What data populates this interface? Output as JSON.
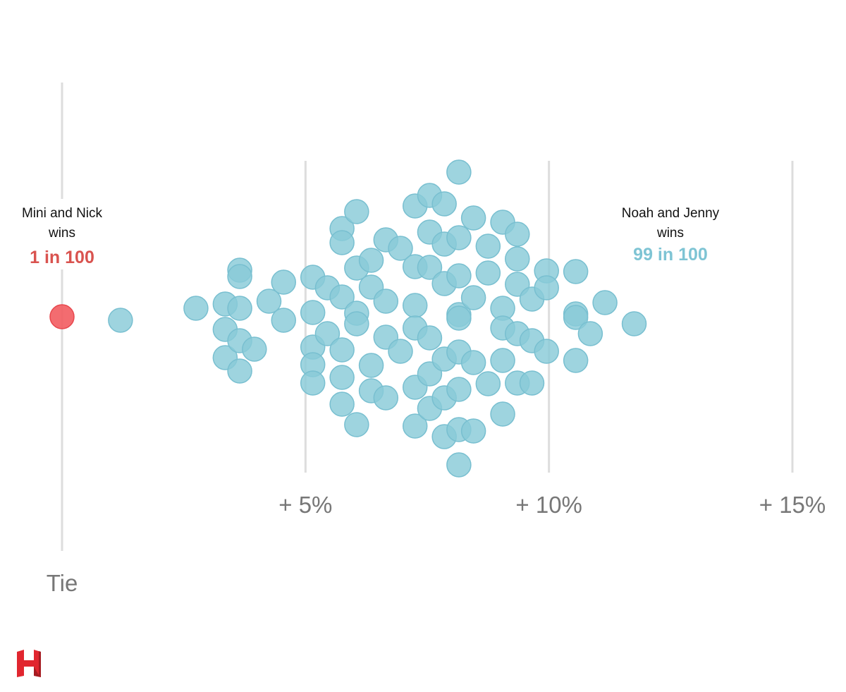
{
  "chart_data": {
    "type": "scatter",
    "subtype": "beeswarm",
    "x_axis": {
      "range": [
        0,
        15
      ],
      "ticks": [
        {
          "value": 0,
          "label": "Tie"
        },
        {
          "value": 5,
          "label": "+ 5%"
        },
        {
          "value": 10,
          "label": "+ 10%"
        },
        {
          "value": 15,
          "label": "+ 15%"
        }
      ]
    },
    "annotations": {
      "left": {
        "line1": "Mini and Nick",
        "line2": "wins",
        "odds": "1 in 100",
        "color": "#d9534f"
      },
      "right": {
        "line1": "Noah and Jenny",
        "line2": "wins",
        "odds": "99 in 100",
        "color": "#7ec4d4"
      }
    },
    "colors": {
      "left_dot": "#f25c61",
      "right_dot": "#89cad8",
      "gridline": "#dddddd",
      "tick_text": "#777777"
    },
    "logo": "h-logo",
    "outcomes": [
      {
        "side": "left",
        "x": 0.0,
        "y": 0.0
      },
      {
        "side": "right",
        "x": 1.2,
        "y": -0.05
      },
      {
        "side": "right",
        "x": 2.75,
        "y": 0.12
      },
      {
        "side": "right",
        "x": 3.35,
        "y": 0.18
      },
      {
        "side": "right",
        "x": 3.35,
        "y": -0.18
      },
      {
        "side": "right",
        "x": 3.35,
        "y": -0.58
      },
      {
        "side": "right",
        "x": 3.65,
        "y": 0.66
      },
      {
        "side": "right",
        "x": 3.65,
        "y": 0.57
      },
      {
        "side": "right",
        "x": 3.65,
        "y": 0.12
      },
      {
        "side": "right",
        "x": 3.65,
        "y": -0.34
      },
      {
        "side": "right",
        "x": 3.65,
        "y": -0.77
      },
      {
        "side": "right",
        "x": 3.95,
        "y": -0.46
      },
      {
        "side": "right",
        "x": 4.25,
        "y": 0.22
      },
      {
        "side": "right",
        "x": 4.55,
        "y": 0.49
      },
      {
        "side": "right",
        "x": 4.55,
        "y": -0.05
      },
      {
        "side": "right",
        "x": 5.15,
        "y": 0.56
      },
      {
        "side": "right",
        "x": 5.15,
        "y": 0.06
      },
      {
        "side": "right",
        "x": 5.15,
        "y": -0.43
      },
      {
        "side": "right",
        "x": 5.15,
        "y": -0.68
      },
      {
        "side": "right",
        "x": 5.15,
        "y": -0.94
      },
      {
        "side": "right",
        "x": 5.45,
        "y": 0.41
      },
      {
        "side": "right",
        "x": 5.45,
        "y": -0.24
      },
      {
        "side": "right",
        "x": 5.75,
        "y": 1.25
      },
      {
        "side": "right",
        "x": 5.75,
        "y": 1.05
      },
      {
        "side": "right",
        "x": 5.75,
        "y": 0.28
      },
      {
        "side": "right",
        "x": 5.75,
        "y": -0.47
      },
      {
        "side": "right",
        "x": 5.75,
        "y": -0.86
      },
      {
        "side": "right",
        "x": 5.75,
        "y": -1.24
      },
      {
        "side": "right",
        "x": 6.05,
        "y": 1.49
      },
      {
        "side": "right",
        "x": 6.05,
        "y": 0.69
      },
      {
        "side": "right",
        "x": 6.05,
        "y": 0.05
      },
      {
        "side": "right",
        "x": 6.05,
        "y": -0.1
      },
      {
        "side": "right",
        "x": 6.05,
        "y": -1.53
      },
      {
        "side": "right",
        "x": 6.35,
        "y": 0.8
      },
      {
        "side": "right",
        "x": 6.35,
        "y": 0.42
      },
      {
        "side": "right",
        "x": 6.35,
        "y": -0.69
      },
      {
        "side": "right",
        "x": 6.35,
        "y": -1.05
      },
      {
        "side": "right",
        "x": 6.65,
        "y": 1.09
      },
      {
        "side": "right",
        "x": 6.65,
        "y": 0.22
      },
      {
        "side": "right",
        "x": 6.65,
        "y": -0.29
      },
      {
        "side": "right",
        "x": 6.65,
        "y": -1.15
      },
      {
        "side": "right",
        "x": 6.95,
        "y": 0.97
      },
      {
        "side": "right",
        "x": 6.95,
        "y": -0.49
      },
      {
        "side": "right",
        "x": 7.25,
        "y": 1.57
      },
      {
        "side": "right",
        "x": 7.25,
        "y": 0.71
      },
      {
        "side": "right",
        "x": 7.25,
        "y": 0.16
      },
      {
        "side": "right",
        "x": 7.25,
        "y": -0.16
      },
      {
        "side": "right",
        "x": 7.25,
        "y": -1.0
      },
      {
        "side": "right",
        "x": 7.25,
        "y": -1.55
      },
      {
        "side": "right",
        "x": 7.55,
        "y": 1.72
      },
      {
        "side": "right",
        "x": 7.55,
        "y": 1.2
      },
      {
        "side": "right",
        "x": 7.55,
        "y": 0.7
      },
      {
        "side": "right",
        "x": 7.55,
        "y": -0.3
      },
      {
        "side": "right",
        "x": 7.55,
        "y": -0.81
      },
      {
        "side": "right",
        "x": 7.55,
        "y": -1.3
      },
      {
        "side": "right",
        "x": 7.85,
        "y": 1.6
      },
      {
        "side": "right",
        "x": 7.85,
        "y": 1.03
      },
      {
        "side": "right",
        "x": 7.85,
        "y": 0.47
      },
      {
        "side": "right",
        "x": 7.85,
        "y": -0.6
      },
      {
        "side": "right",
        "x": 7.85,
        "y": -1.15
      },
      {
        "side": "right",
        "x": 7.85,
        "y": -1.7
      },
      {
        "side": "right",
        "x": 8.15,
        "y": 2.05
      },
      {
        "side": "right",
        "x": 8.15,
        "y": 1.12
      },
      {
        "side": "right",
        "x": 8.15,
        "y": 0.58
      },
      {
        "side": "right",
        "x": 8.15,
        "y": 0.03
      },
      {
        "side": "right",
        "x": 8.15,
        "y": -0.02
      },
      {
        "side": "right",
        "x": 8.15,
        "y": -0.5
      },
      {
        "side": "right",
        "x": 8.15,
        "y": -1.03
      },
      {
        "side": "right",
        "x": 8.15,
        "y": -1.6
      },
      {
        "side": "right",
        "x": 8.15,
        "y": -2.1
      },
      {
        "side": "right",
        "x": 8.45,
        "y": 1.4
      },
      {
        "side": "right",
        "x": 8.45,
        "y": 0.27
      },
      {
        "side": "right",
        "x": 8.45,
        "y": -0.65
      },
      {
        "side": "right",
        "x": 8.45,
        "y": -1.62
      },
      {
        "side": "right",
        "x": 8.75,
        "y": 1.0
      },
      {
        "side": "right",
        "x": 8.75,
        "y": 0.62
      },
      {
        "side": "right",
        "x": 8.75,
        "y": -0.95
      },
      {
        "side": "right",
        "x": 9.05,
        "y": 1.34
      },
      {
        "side": "right",
        "x": 9.05,
        "y": 0.12
      },
      {
        "side": "right",
        "x": 9.05,
        "y": -0.16
      },
      {
        "side": "right",
        "x": 9.05,
        "y": -0.62
      },
      {
        "side": "right",
        "x": 9.05,
        "y": -1.38
      },
      {
        "side": "right",
        "x": 9.35,
        "y": 1.17
      },
      {
        "side": "right",
        "x": 9.35,
        "y": 0.82
      },
      {
        "side": "right",
        "x": 9.35,
        "y": 0.46
      },
      {
        "side": "right",
        "x": 9.35,
        "y": -0.24
      },
      {
        "side": "right",
        "x": 9.35,
        "y": -0.94
      },
      {
        "side": "right",
        "x": 9.65,
        "y": 0.25
      },
      {
        "side": "right",
        "x": 9.65,
        "y": -0.34
      },
      {
        "side": "right",
        "x": 9.65,
        "y": -0.94
      },
      {
        "side": "right",
        "x": 9.95,
        "y": 0.65
      },
      {
        "side": "right",
        "x": 9.95,
        "y": 0.41
      },
      {
        "side": "right",
        "x": 9.95,
        "y": -0.49
      },
      {
        "side": "right",
        "x": 10.55,
        "y": 0.64
      },
      {
        "side": "right",
        "x": 10.55,
        "y": 0.04
      },
      {
        "side": "right",
        "x": 10.55,
        "y": -0.01
      },
      {
        "side": "right",
        "x": 10.55,
        "y": -0.62
      },
      {
        "side": "right",
        "x": 10.85,
        "y": -0.24
      },
      {
        "side": "right",
        "x": 11.15,
        "y": 0.2
      },
      {
        "side": "right",
        "x": 11.75,
        "y": -0.1
      }
    ]
  }
}
